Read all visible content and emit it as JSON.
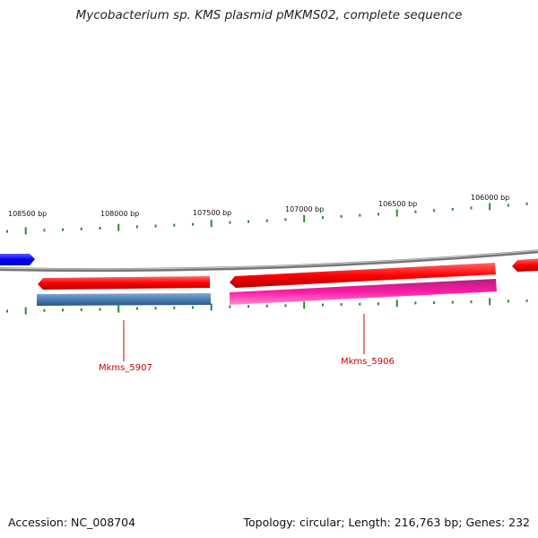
{
  "title": "Mycobacterium sp. KMS plasmid pMKMS02, complete sequence",
  "footer": {
    "accession": "Accession: NC_008704",
    "summary": "Topology: circular; Length: 216,763 bp; Genes: 232"
  },
  "ticks": [
    "108500 bp",
    "108000 bp",
    "107500 bp",
    "107000 bp",
    "106500 bp",
    "106000 bp"
  ],
  "genes": [
    {
      "label": "Mkms_5907",
      "color": "#4a7fb5"
    },
    {
      "label": "Mkms_5906",
      "color": "#ee1199"
    }
  ],
  "colors": {
    "forward_gene": "#ee0000",
    "reverse_gene_blue": "#4a7fb5",
    "reverse_gene_pink": "#ee1199",
    "neighbor_gene": "#0000ee",
    "backbone": "#888888",
    "tick": "#2a8a2a",
    "label": "#cc0000"
  }
}
